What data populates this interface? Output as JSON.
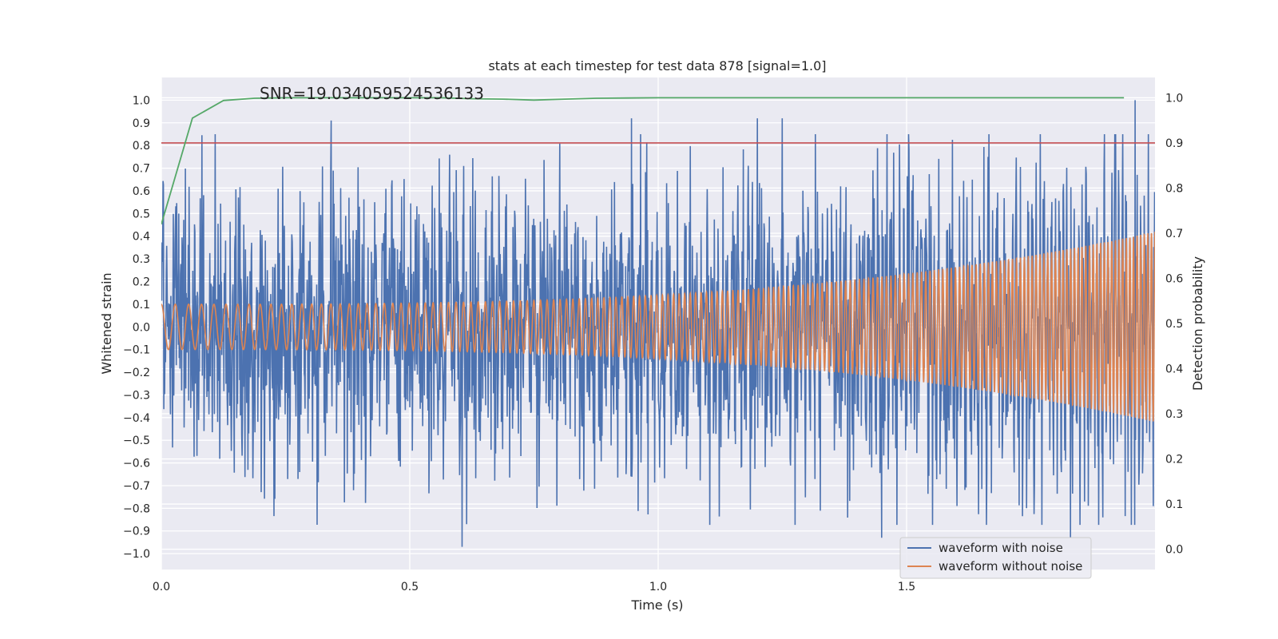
{
  "chart_data": {
    "type": "line",
    "title": "stats at each timestep for test data 878 [signal=1.0]",
    "xlabel": "Time (s)",
    "ylabel": "Whitened strain",
    "ylabel_right": "Detection probability",
    "xlim": [
      0.0,
      2.0
    ],
    "ylim": [
      -1.07,
      1.1
    ],
    "ylim_right": [
      -0.045,
      1.045
    ],
    "x_ticks": [
      0.0,
      0.5,
      1.0,
      1.5
    ],
    "x_tick_labels": [
      "0.0",
      "0.5",
      "1.0",
      "1.5"
    ],
    "y_ticks": [
      1.0,
      0.9,
      0.8,
      0.7,
      0.6,
      0.5,
      0.4,
      0.3,
      0.2,
      0.1,
      0.0,
      -0.1,
      -0.2,
      -0.3,
      -0.4,
      -0.5,
      -0.6,
      -0.7,
      -0.8,
      -0.9,
      -1.0
    ],
    "y_tick_labels": [
      "1.0",
      "0.9",
      "0.8",
      "0.7",
      "0.6",
      "0.5",
      "0.4",
      "0.3",
      "0.2",
      "0.1",
      "0.0",
      "−0.1",
      "−0.2",
      "−0.3",
      "−0.4",
      "−0.5",
      "−0.6",
      "−0.7",
      "−0.8",
      "−0.9",
      "−1.0"
    ],
    "y2_ticks": [
      1.0,
      0.9,
      0.8,
      0.7,
      0.6,
      0.5,
      0.4,
      0.3,
      0.2,
      0.1,
      0.0
    ],
    "y2_tick_labels": [
      "1.0",
      "0.9",
      "0.8",
      "0.7",
      "0.6",
      "0.5",
      "0.4",
      "0.3",
      "0.2",
      "0.1",
      "0.0"
    ],
    "annotation": "SNR=19.034059524536133",
    "threshold": 0.9,
    "series": [
      {
        "name": "waveform with noise",
        "color": "#4c72b0",
        "axis": "left",
        "kind": "noise",
        "n_points": 2400,
        "amplitude_std": 0.3,
        "y_min": -0.97,
        "y_max": 1.0,
        "notable_peaks": [
          [
            0.342,
            0.91
          ],
          [
            0.946,
            0.92
          ],
          [
            1.2,
            0.92
          ],
          [
            1.25,
            0.92
          ],
          [
            1.96,
            1.0
          ],
          [
            0.605,
            -0.97
          ],
          [
            1.45,
            -0.93
          ],
          [
            1.83,
            -0.93
          ]
        ]
      },
      {
        "name": "waveform without noise",
        "color": "#dd8452",
        "axis": "left",
        "kind": "chirp",
        "start_frequency_hz": 35,
        "end_frequency_hz": 140,
        "start_amplitude": 0.1,
        "end_amplitude": 0.42
      },
      {
        "name": "detection probability",
        "color": "#55a868",
        "axis": "right",
        "x": [
          0.0,
          0.0625,
          0.125,
          0.1875,
          0.25,
          0.3125,
          0.375,
          0.4375,
          0.5,
          0.5625,
          0.625,
          0.6875,
          0.75,
          0.8125,
          0.875,
          0.9375,
          1.0,
          1.0625,
          1.125,
          1.1875,
          1.25,
          1.3125,
          1.375,
          1.4375,
          1.5,
          1.5625,
          1.625,
          1.6875,
          1.75,
          1.8125,
          1.875,
          1.9375
        ],
        "values": [
          0.72,
          0.955,
          0.994,
          0.999,
          1.0,
          1.0,
          1.0,
          1.0,
          1.0,
          1.0,
          0.998,
          0.997,
          0.995,
          0.997,
          0.999,
          0.9995,
          1.0,
          1.0,
          1.0,
          1.0,
          1.0,
          1.0,
          1.0,
          1.0,
          1.0,
          1.0,
          1.0,
          1.0,
          1.0,
          1.0,
          1.0,
          1.0
        ]
      },
      {
        "name": "threshold",
        "color": "#c44e52",
        "axis": "right",
        "value": 0.9
      }
    ],
    "legend": {
      "position": "lower-right",
      "entries": [
        {
          "label": "waveform with noise",
          "color": "#4c72b0"
        },
        {
          "label": "waveform without noise",
          "color": "#dd8452"
        }
      ]
    },
    "grid": true
  }
}
